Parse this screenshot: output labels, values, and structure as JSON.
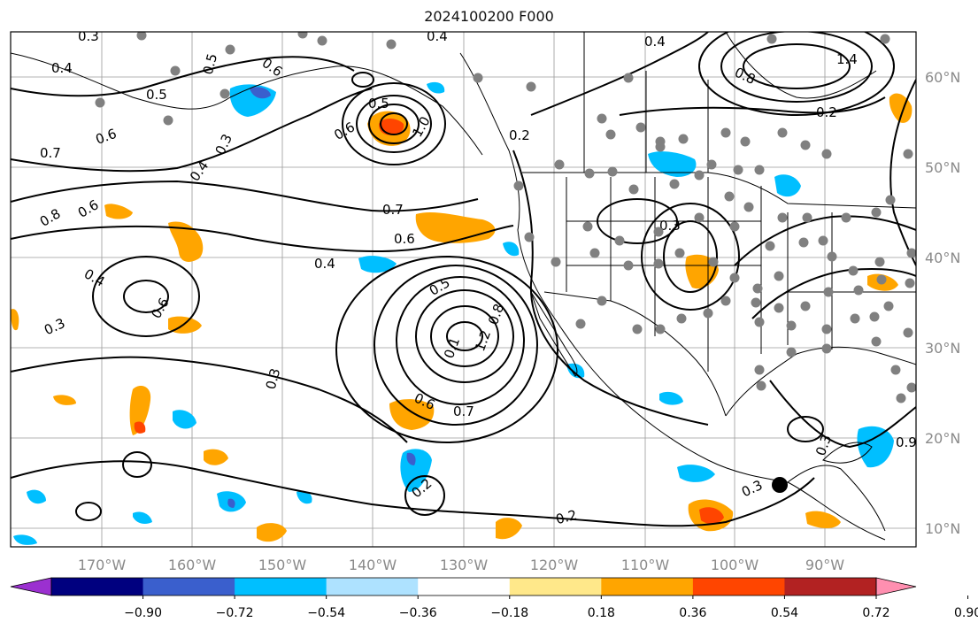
{
  "title": "2024100200 F000",
  "longitude_ticks": [
    "170°W",
    "160°W",
    "150°W",
    "140°W",
    "130°W",
    "120°W",
    "110°W",
    "100°W",
    "90°W"
  ],
  "latitude_ticks": [
    "60°N",
    "50°N",
    "40°N",
    "30°N",
    "20°N",
    "10°N"
  ],
  "colorbar": {
    "ticks": [
      "−0.90",
      "−0.72",
      "−0.54",
      "−0.36",
      "−0.18",
      "0.18",
      "0.36",
      "0.54",
      "0.72",
      "0.90"
    ],
    "colors": [
      "#9b30d0",
      "#00007f",
      "#3a5fcd",
      "#00bfff",
      "#aee2ff",
      "#ffffff",
      "#ffe88a",
      "#ffa500",
      "#ff4500",
      "#b22222",
      "#ff8fb0"
    ]
  },
  "contour_labels": [
    "0.3",
    "0.4",
    "0.5",
    "0.4",
    "0.5",
    "0.6",
    "0.7",
    "0.6",
    "0.3",
    "0.4",
    "0.5",
    "0.6",
    "1.0",
    "0.2",
    "0.4",
    "0.8",
    "1.4",
    "0.2",
    "0.7",
    "0.6",
    "0.4",
    "0.8",
    "0.6",
    "0.4",
    "0.3",
    "0.6",
    "0.5",
    "0.3",
    "0.1",
    "1.2",
    "0.8",
    "0.6",
    "0.7",
    "0.3",
    "0.2",
    "0.2",
    "0.3",
    "0.3",
    "0.9"
  ],
  "legend": {
    "marker_gray": "#808080",
    "marker_black": "#000000"
  }
}
